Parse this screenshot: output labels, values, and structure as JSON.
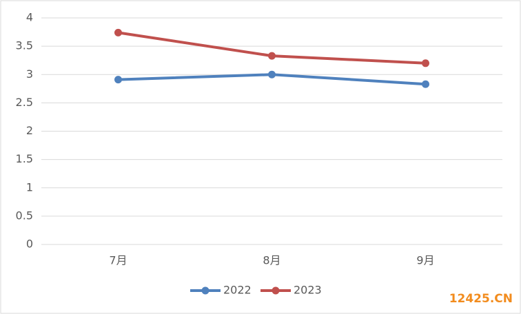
{
  "chart_data": {
    "type": "line",
    "categories": [
      "7月",
      "8月",
      "9月"
    ],
    "series": [
      {
        "name": "2022",
        "color": "#4f81bd",
        "values": [
          2.91,
          3.0,
          2.83
        ]
      },
      {
        "name": "2023",
        "color": "#c0504d",
        "values": [
          3.74,
          3.33,
          3.2
        ]
      }
    ],
    "ylim": [
      0,
      4
    ],
    "yticks": [
      0,
      0.5,
      1,
      1.5,
      2,
      2.5,
      3,
      3.5,
      4
    ],
    "grid": true,
    "legend": "bottom",
    "watermark": "12425.CN"
  }
}
